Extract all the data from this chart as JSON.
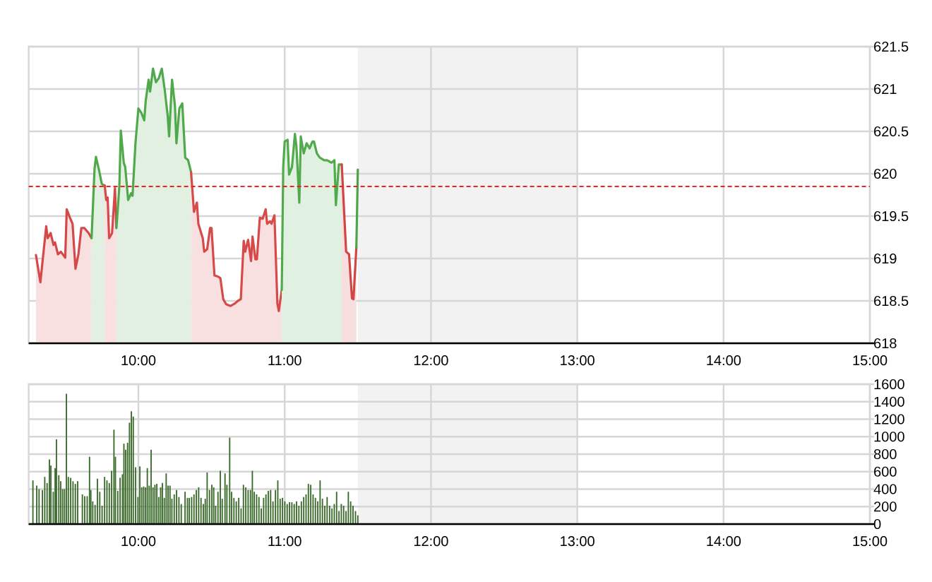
{
  "chart_data": [
    {
      "type": "area",
      "series": [
        {
          "color": "#d44848",
          "x": [
            9.3,
            9.33,
            9.37,
            9.38,
            9.4,
            9.42,
            9.43,
            9.45,
            9.47,
            9.5,
            9.51,
            9.53,
            9.55,
            9.57,
            9.59,
            9.61,
            9.63,
            9.66,
            9.68
          ],
          "values": [
            619.04,
            618.72,
            619.38,
            619.24,
            619.3,
            619.16,
            619.19,
            619.05,
            619.08,
            619.01,
            619.58,
            619.49,
            619.41,
            618.88,
            619.05,
            619.36,
            619.36,
            619.3,
            619.24
          ]
        },
        {
          "color": "#4fa84a",
          "x": [
            9.68,
            9.7,
            9.71,
            9.73,
            9.75,
            9.77
          ],
          "values": [
            619.24,
            620.05,
            620.2,
            620.05,
            619.88,
            619.86
          ]
        },
        {
          "color": "#d54949",
          "x": [
            9.77,
            9.78,
            9.79,
            9.8,
            9.82,
            9.84,
            9.85
          ],
          "values": [
            619.86,
            619.69,
            619.72,
            619.24,
            619.3,
            619.83,
            619.36
          ]
        },
        {
          "color": "#50a94b",
          "x": [
            9.85,
            9.87,
            9.88,
            9.9,
            9.91,
            9.93,
            9.95,
            9.96,
            9.98,
            10,
            10.02,
            10.04,
            10.05,
            10.07,
            10.08,
            10.1,
            10.12,
            10.14,
            10.16,
            10.18,
            10.2,
            10.21,
            10.23,
            10.25,
            10.26,
            10.28,
            10.3,
            10.32,
            10.34,
            10.36
          ],
          "values": [
            619.36,
            619.86,
            620.51,
            620.13,
            620.08,
            619.69,
            619.77,
            619.74,
            620.36,
            620.77,
            620.72,
            620.63,
            620.86,
            621.11,
            620.97,
            621.24,
            621.08,
            621.13,
            621.24,
            620.99,
            620.69,
            620.44,
            621.11,
            620.8,
            620.36,
            620.77,
            620.83,
            620.19,
            620.16,
            620.02
          ]
        },
        {
          "color": "#d64a4a",
          "x": [
            10.36,
            10.38,
            10.4,
            10.41,
            10.44,
            10.45,
            10.47,
            10.49,
            10.5,
            10.52,
            10.54,
            10.56,
            10.58,
            10.6,
            10.63,
            10.66,
            10.68,
            10.7,
            10.72,
            10.73,
            10.75,
            10.77,
            10.78,
            10.8,
            10.81,
            10.83,
            10.85,
            10.87,
            10.88,
            10.9,
            10.91,
            10.93,
            10.95,
            10.96,
            10.98
          ],
          "values": [
            620.02,
            619.55,
            619.66,
            619.41,
            619.24,
            619.08,
            619.11,
            619.36,
            619.36,
            618.8,
            618.79,
            618.77,
            618.52,
            618.46,
            618.44,
            618.47,
            618.5,
            618.52,
            619.21,
            619.08,
            619.22,
            618.97,
            619.26,
            618.99,
            618.99,
            619.48,
            619.47,
            619.58,
            619.41,
            619.44,
            619.41,
            619.51,
            618.47,
            618.38,
            618.63
          ]
        },
        {
          "color": "#51aa4c",
          "x": [
            10.98,
            10.99,
            11,
            11.02,
            11.03,
            11.05,
            11.07,
            11.08,
            11.1,
            11.11,
            11.13,
            11.15,
            11.17,
            11.19,
            11.2,
            11.22,
            11.24,
            11.27,
            11.29,
            11.32,
            11.34,
            11.35,
            11.37,
            11.39
          ],
          "values": [
            618.63,
            620.08,
            620.38,
            620.4,
            619.99,
            620.08,
            620.47,
            620.33,
            619.66,
            620.44,
            620.24,
            620.36,
            620.3,
            620.38,
            620.38,
            620.24,
            620.19,
            620.16,
            620.16,
            620.13,
            620.16,
            619.63,
            620.11,
            620.11
          ]
        },
        {
          "color": "#d14545",
          "x": [
            11.39,
            11.42,
            11.44,
            11.46,
            11.47,
            11.49
          ],
          "values": [
            620.11,
            619.08,
            619.05,
            618.53,
            618.52,
            619.13
          ]
        },
        {
          "type": "line",
          "color": "#4ca547",
          "x": [
            11.49,
            11.5
          ],
          "values": [
            619.13,
            620.05
          ]
        }
      ],
      "xlim": [
        9.25,
        15
      ],
      "xticks": [
        {
          "value": 10,
          "label": "10:00"
        },
        {
          "value": 11,
          "label": "11:00"
        },
        {
          "value": 12,
          "label": "12:00"
        },
        {
          "value": 13,
          "label": "13:00"
        },
        {
          "value": 14,
          "label": "14:00"
        },
        {
          "value": 15,
          "label": "15:00"
        }
      ],
      "ylim": [
        618,
        621.5
      ],
      "yticks": [
        618,
        618.5,
        619,
        619.5,
        620,
        620.5,
        621,
        621.5
      ],
      "grid": true,
      "marker": "none",
      "line_style": "solid",
      "ref_lines": [
        {
          "axis": "y",
          "value": 619.85,
          "color": "#ee2222",
          "line_style": "dashed"
        }
      ],
      "bands": [
        {
          "axis": "x",
          "from": 11.5,
          "to": 13,
          "color": "#f2f2f2"
        }
      ]
    },
    {
      "type": "bar",
      "x": [
        9.279,
        9.305,
        9.321,
        9.344,
        9.36,
        9.376,
        9.392,
        9.402,
        9.418,
        9.431,
        9.44,
        9.456,
        9.469,
        9.482,
        9.495,
        9.508,
        9.521,
        9.537,
        9.553,
        9.569,
        9.585,
        9.617,
        9.633,
        9.65,
        9.666,
        9.675,
        9.688,
        9.704,
        9.72,
        9.736,
        9.752,
        9.769,
        9.785,
        9.801,
        9.817,
        9.833,
        9.843,
        9.859,
        9.875,
        9.891,
        9.901,
        9.913,
        9.926,
        9.939,
        9.952,
        9.965,
        9.981,
        9.997,
        10.01,
        10.023,
        10.036,
        10.049,
        10.061,
        10.074,
        10.087,
        10.1,
        10.113,
        10.126,
        10.139,
        10.152,
        10.164,
        10.177,
        10.19,
        10.203,
        10.216,
        10.229,
        10.245,
        10.261,
        10.277,
        10.293,
        10.319,
        10.335,
        10.348,
        10.364,
        10.38,
        10.396,
        10.412,
        10.428,
        10.444,
        10.457,
        10.47,
        10.486,
        10.502,
        10.515,
        10.528,
        10.544,
        10.56,
        10.573,
        10.592,
        10.605,
        10.624,
        10.637,
        10.653,
        10.669,
        10.686,
        10.702,
        10.718,
        10.734,
        10.75,
        10.766,
        10.779,
        10.792,
        10.808,
        10.824,
        10.84,
        10.856,
        10.872,
        10.888,
        10.904,
        10.92,
        10.937,
        10.953,
        10.969,
        10.985,
        11.001,
        11.017,
        11.033,
        11.049,
        11.065,
        11.081,
        11.097,
        11.114,
        11.13,
        11.146,
        11.162,
        11.178,
        11.194,
        11.21,
        11.226,
        11.242,
        11.258,
        11.274,
        11.29,
        11.307,
        11.323,
        11.339,
        11.355,
        11.371,
        11.387,
        11.403,
        11.419,
        11.435,
        11.451,
        11.467,
        11.484,
        11.5
      ],
      "values": [
        500,
        440,
        400,
        390,
        540,
        470,
        740,
        670,
        370,
        640,
        970,
        560,
        490,
        400,
        400,
        1490,
        540,
        530,
        490,
        460,
        490,
        340,
        320,
        320,
        770,
        390,
        260,
        220,
        520,
        370,
        210,
        540,
        500,
        470,
        610,
        1080,
        770,
        380,
        530,
        570,
        920,
        850,
        930,
        1160,
        1290,
        1230,
        650,
        310,
        660,
        420,
        430,
        420,
        640,
        440,
        850,
        420,
        450,
        460,
        310,
        420,
        470,
        300,
        580,
        440,
        440,
        290,
        340,
        390,
        310,
        230,
        370,
        300,
        300,
        310,
        340,
        390,
        420,
        300,
        230,
        290,
        590,
        390,
        450,
        420,
        210,
        370,
        610,
        290,
        580,
        450,
        990,
        370,
        300,
        260,
        300,
        180,
        450,
        420,
        390,
        390,
        610,
        370,
        340,
        310,
        180,
        300,
        340,
        380,
        390,
        260,
        390,
        500,
        290,
        300,
        260,
        230,
        250,
        250,
        230,
        260,
        210,
        260,
        310,
        340,
        460,
        450,
        340,
        300,
        260,
        500,
        290,
        210,
        310,
        210,
        180,
        230,
        370,
        150,
        230,
        210,
        150,
        370,
        260,
        210,
        150,
        100
      ],
      "color": "#3b6b2b",
      "xlim": [
        9.25,
        15
      ],
      "xticks": [
        {
          "value": 10,
          "label": "10:00"
        },
        {
          "value": 11,
          "label": "11:00"
        },
        {
          "value": 12,
          "label": "12:00"
        },
        {
          "value": 13,
          "label": "13:00"
        },
        {
          "value": 14,
          "label": "14:00"
        },
        {
          "value": 15,
          "label": "15:00"
        }
      ],
      "ylim": [
        0,
        1600
      ],
      "yticks": [
        0,
        200,
        400,
        600,
        800,
        1000,
        1200,
        1400,
        1600
      ],
      "grid": true,
      "bands": [
        {
          "axis": "x",
          "from": 11.5,
          "to": 13,
          "color": "#f2f2f2"
        }
      ]
    }
  ]
}
